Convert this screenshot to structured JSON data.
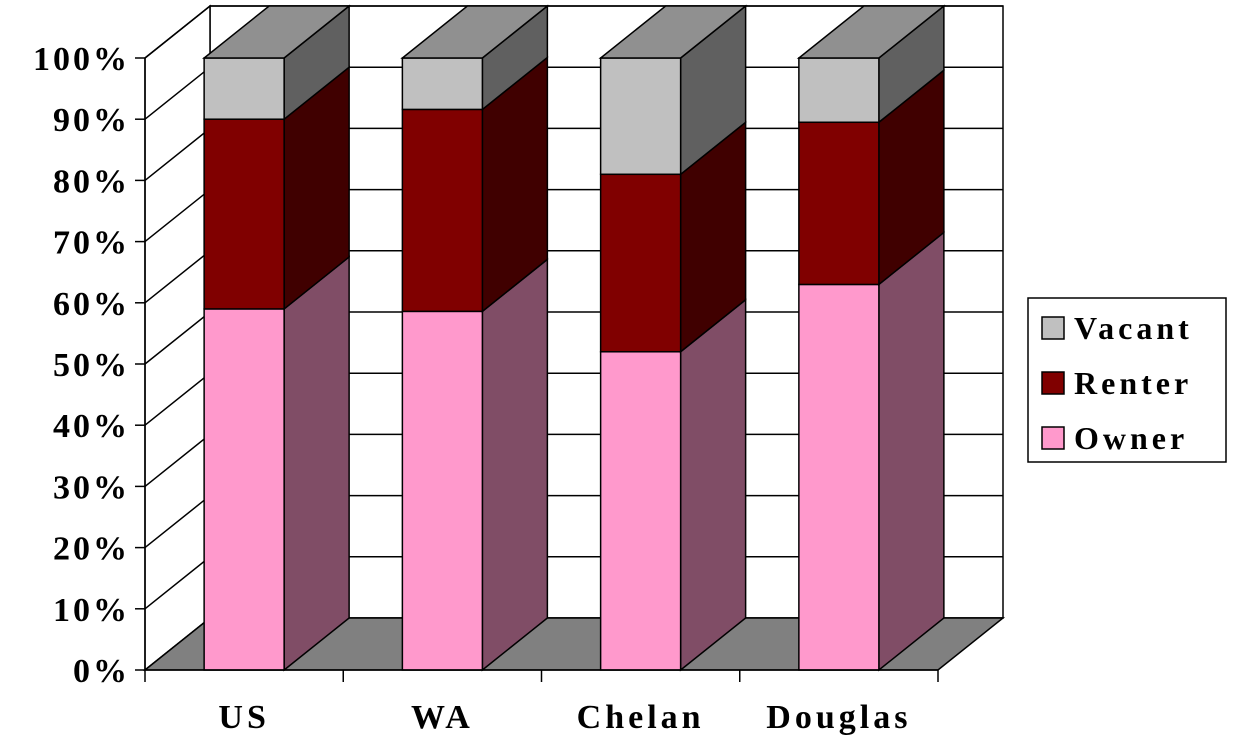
{
  "chart_data": {
    "type": "bar",
    "stacked": true,
    "percent": true,
    "three_d": true,
    "title": "",
    "xlabel": "",
    "ylabel": "",
    "categories": [
      "US",
      "WA",
      "Chelan",
      "Douglas"
    ],
    "series": [
      {
        "name": "Owner",
        "color": "#FF99CC",
        "values": [
          59,
          58.6,
          52,
          63
        ]
      },
      {
        "name": "Renter",
        "color": "#800000",
        "values": [
          31,
          33,
          29,
          26.5
        ]
      },
      {
        "name": "Vacant",
        "color": "#C0C0C0",
        "values": [
          10,
          8.4,
          19,
          10.5
        ]
      }
    ],
    "ylim": [
      0,
      100
    ],
    "yticks": [
      "0%",
      "10%",
      "20%",
      "30%",
      "40%",
      "50%",
      "60%",
      "70%",
      "80%",
      "90%",
      "100%"
    ],
    "grid": true,
    "legend_position": "right",
    "legend": [
      "Vacant",
      "Renter",
      "Owner"
    ]
  }
}
